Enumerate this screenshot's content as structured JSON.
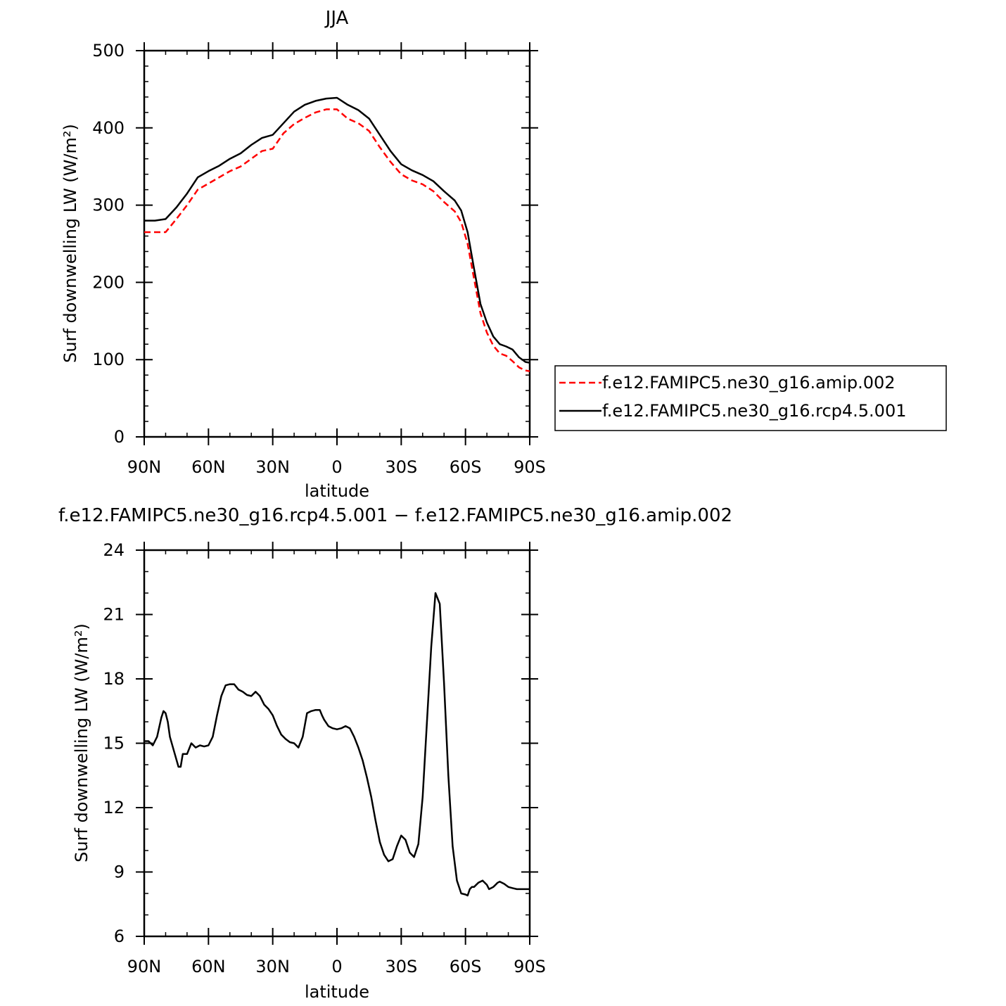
{
  "chart_data": [
    {
      "type": "line",
      "title": "JJA",
      "xlabel": "latitude",
      "ylabel": "Surf downwelling LW (W/m²)",
      "xlim": [
        90,
        -90
      ],
      "ylim": [
        0,
        500
      ],
      "xticks": [
        {
          "value": 90,
          "label": "90N"
        },
        {
          "value": 60,
          "label": "60N"
        },
        {
          "value": 30,
          "label": "30N"
        },
        {
          "value": 0,
          "label": "0"
        },
        {
          "value": -30,
          "label": "30S"
        },
        {
          "value": -60,
          "label": "60S"
        },
        {
          "value": -90,
          "label": "90S"
        }
      ],
      "yticks": [
        {
          "value": 0,
          "label": "0"
        },
        {
          "value": 100,
          "label": "100"
        },
        {
          "value": 200,
          "label": "200"
        },
        {
          "value": 300,
          "label": "300"
        },
        {
          "value": 400,
          "label": "400"
        },
        {
          "value": 500,
          "label": "500"
        }
      ],
      "legend_position": "right",
      "series": [
        {
          "name": "f.e12.FAMIPC5.ne30_g16.amip.002",
          "color": "#ff0000",
          "dash": "dashed",
          "x": [
            90,
            85,
            80,
            75,
            70,
            65,
            60,
            55,
            50,
            45,
            40,
            35,
            30,
            25,
            20,
            15,
            10,
            5,
            0,
            -5,
            -10,
            -15,
            -20,
            -25,
            -30,
            -35,
            -40,
            -45,
            -50,
            -55,
            -58,
            -61,
            -64,
            -67,
            -70,
            -73,
            -76,
            -79,
            -82,
            -85,
            -88,
            -90
          ],
          "y": [
            265,
            265,
            265,
            282,
            300,
            320,
            328,
            336,
            344,
            350,
            360,
            370,
            373,
            393,
            405,
            413,
            420,
            424,
            424,
            412,
            406,
            396,
            375,
            356,
            340,
            332,
            327,
            318,
            304,
            292,
            278,
            250,
            205,
            160,
            135,
            118,
            108,
            105,
            98,
            90,
            86,
            85
          ]
        },
        {
          "name": "f.e12.FAMIPC5.ne30_g16.rcp4.5.001",
          "color": "#000000",
          "dash": "solid",
          "x": [
            90,
            85,
            80,
            75,
            70,
            65,
            60,
            55,
            50,
            45,
            40,
            35,
            30,
            25,
            20,
            15,
            10,
            5,
            0,
            -5,
            -10,
            -15,
            -20,
            -25,
            -30,
            -35,
            -40,
            -45,
            -50,
            -55,
            -58,
            -61,
            -64,
            -67,
            -70,
            -73,
            -76,
            -79,
            -82,
            -85,
            -88,
            -90
          ],
          "y": [
            280,
            280,
            282,
            297,
            315,
            336,
            344,
            351,
            360,
            367,
            378,
            387,
            391,
            406,
            421,
            430,
            435,
            438,
            439,
            430,
            423,
            412,
            391,
            370,
            353,
            345,
            339,
            331,
            318,
            306,
            293,
            265,
            218,
            172,
            148,
            130,
            120,
            117,
            113,
            103,
            97,
            96
          ]
        }
      ]
    },
    {
      "type": "line",
      "title": "f.e12.FAMIPC5.ne30_g16.rcp4.5.001 − f.e12.FAMIPC5.ne30_g16.amip.002",
      "xlabel": "latitude",
      "ylabel": "Surf downwelling LW (W/m²)",
      "xlim": [
        90,
        -90
      ],
      "ylim": [
        6,
        24
      ],
      "xticks": [
        {
          "value": 90,
          "label": "90N"
        },
        {
          "value": 60,
          "label": "60N"
        },
        {
          "value": 30,
          "label": "30N"
        },
        {
          "value": 0,
          "label": "0"
        },
        {
          "value": -30,
          "label": "30S"
        },
        {
          "value": -60,
          "label": "60S"
        },
        {
          "value": -90,
          "label": "90S"
        }
      ],
      "yticks": [
        {
          "value": 6,
          "label": "6"
        },
        {
          "value": 9,
          "label": "9"
        },
        {
          "value": 12,
          "label": "12"
        },
        {
          "value": 15,
          "label": "15"
        },
        {
          "value": 18,
          "label": "18"
        },
        {
          "value": 21,
          "label": "21"
        },
        {
          "value": 24,
          "label": "24"
        }
      ],
      "series": [
        {
          "color": "#000000",
          "dash": "solid",
          "x": [
            90,
            88,
            86,
            84,
            82,
            81,
            80,
            79,
            78,
            76,
            74,
            73,
            72,
            70,
            68,
            66,
            64,
            62,
            60,
            58,
            56,
            54,
            52,
            50,
            48,
            46,
            44,
            42,
            40,
            38,
            36,
            34,
            32,
            30,
            28,
            26,
            24,
            22,
            20,
            18,
            16,
            14,
            12,
            10,
            8,
            7,
            6,
            4,
            2,
            0,
            -2,
            -4,
            -6,
            -8,
            -10,
            -12,
            -14,
            -16,
            -18,
            -20,
            -22,
            -24,
            -26,
            -28,
            -30,
            -32,
            -34,
            -36,
            -38,
            -40,
            -42,
            -44,
            -46,
            -48,
            -50,
            -52,
            -54,
            -56,
            -58,
            -60,
            -61,
            -62,
            -63,
            -64,
            -66,
            -68,
            -70,
            -71,
            -72,
            -73,
            -74,
            -75,
            -76,
            -78,
            -80,
            -82,
            -84,
            -86,
            -88,
            -90
          ],
          "y": [
            15.1,
            15.1,
            14.9,
            15.3,
            16.2,
            16.5,
            16.4,
            16.0,
            15.3,
            14.6,
            13.9,
            13.9,
            14.5,
            14.5,
            15.0,
            14.8,
            14.9,
            14.85,
            14.9,
            15.3,
            16.3,
            17.2,
            17.7,
            17.75,
            17.75,
            17.5,
            17.4,
            17.25,
            17.2,
            17.4,
            17.2,
            16.8,
            16.6,
            16.3,
            15.8,
            15.4,
            15.2,
            15.05,
            15.0,
            14.8,
            15.3,
            16.4,
            16.5,
            16.55,
            16.55,
            16.3,
            16.1,
            15.8,
            15.7,
            15.65,
            15.7,
            15.8,
            15.7,
            15.3,
            14.8,
            14.2,
            13.4,
            12.5,
            11.4,
            10.4,
            9.8,
            9.5,
            9.6,
            10.2,
            10.7,
            10.5,
            9.9,
            9.7,
            10.3,
            12.5,
            16.0,
            19.5,
            22.0,
            21.5,
            17.8,
            13.5,
            10.2,
            8.6,
            8.0,
            7.95,
            7.9,
            8.2,
            8.3,
            8.3,
            8.5,
            8.6,
            8.4,
            8.2,
            8.25,
            8.3,
            8.4,
            8.5,
            8.55,
            8.45,
            8.3,
            8.25,
            8.2,
            8.2,
            8.2,
            8.2
          ]
        }
      ]
    }
  ]
}
